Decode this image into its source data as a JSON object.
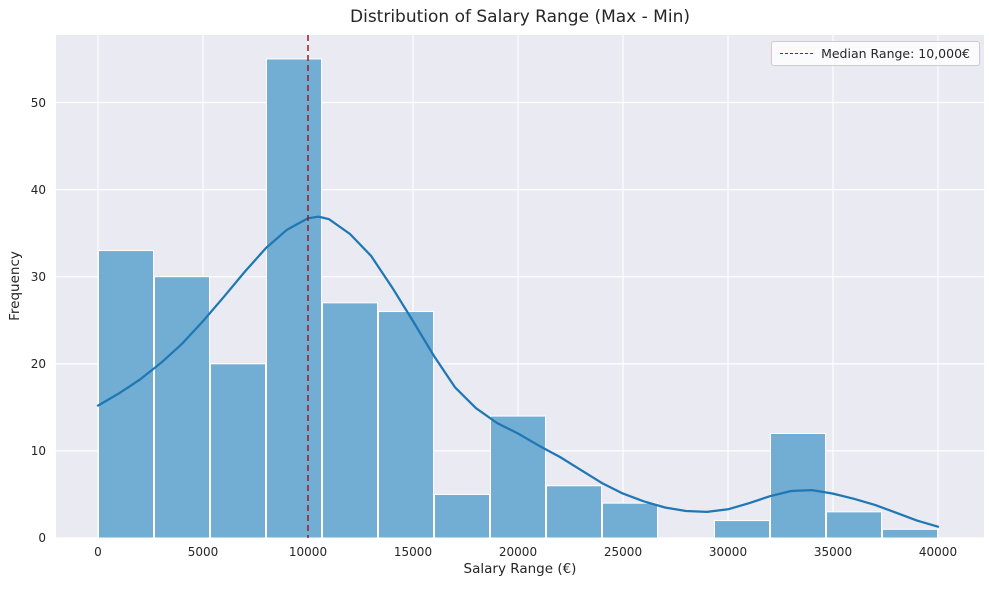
{
  "chart_data": {
    "type": "histogram+kde",
    "title": "Distribution of Salary Range (Max - Min)",
    "xlabel": "Salary Range (€)",
    "ylabel": "Frequency",
    "xlim": [
      -2000,
      42190
    ],
    "ylim": [
      0,
      57.75
    ],
    "xticks": [
      0,
      5000,
      10000,
      15000,
      20000,
      25000,
      30000,
      35000,
      40000
    ],
    "yticks": [
      0,
      10,
      20,
      30,
      40,
      50
    ],
    "grid": true,
    "legend_position": "upper right",
    "legend": {
      "label": "Median Range: 10,000€"
    },
    "bin_edges": [
      0,
      2666.67,
      5333.33,
      8000,
      10666.67,
      13333.33,
      16000,
      18666.67,
      21333.33,
      24000,
      26666.67,
      29333.33,
      32000,
      34666.67,
      37333.33,
      40000
    ],
    "counts": [
      33,
      30,
      20,
      55,
      27,
      26,
      5,
      14,
      6,
      4,
      0,
      2,
      12,
      3,
      1
    ],
    "kde": {
      "x": [
        0,
        1000,
        2000,
        3000,
        4000,
        5000,
        6000,
        7000,
        8000,
        9000,
        10000,
        10500,
        11000,
        12000,
        13000,
        14000,
        15000,
        16000,
        17000,
        18000,
        19000,
        20000,
        21000,
        22000,
        23000,
        24000,
        25000,
        26000,
        27000,
        28000,
        29000,
        30000,
        31000,
        32000,
        33000,
        34000,
        35000,
        36000,
        37000,
        38000,
        39000,
        40000
      ],
      "y": [
        15.2,
        16.6,
        18.2,
        20.1,
        22.3,
        24.9,
        27.7,
        30.6,
        33.3,
        35.4,
        36.7,
        36.9,
        36.6,
        34.9,
        32.4,
        28.8,
        24.9,
        20.9,
        17.3,
        14.9,
        13.2,
        12.0,
        10.6,
        9.3,
        7.8,
        6.3,
        5.1,
        4.2,
        3.5,
        3.1,
        3.0,
        3.3,
        4.0,
        4.8,
        5.4,
        5.5,
        5.1,
        4.5,
        3.8,
        2.9,
        2.0,
        1.3
      ]
    },
    "median_line": {
      "x": 10000
    },
    "colors": {
      "bar_fill": "#72aed3",
      "bar_edge": "#ffffff",
      "kde_line": "#1f77b4",
      "median_line": "#9b1c1c",
      "plot_bg": "#eaeaf2",
      "grid": "#ffffff",
      "text": "#262626"
    }
  }
}
